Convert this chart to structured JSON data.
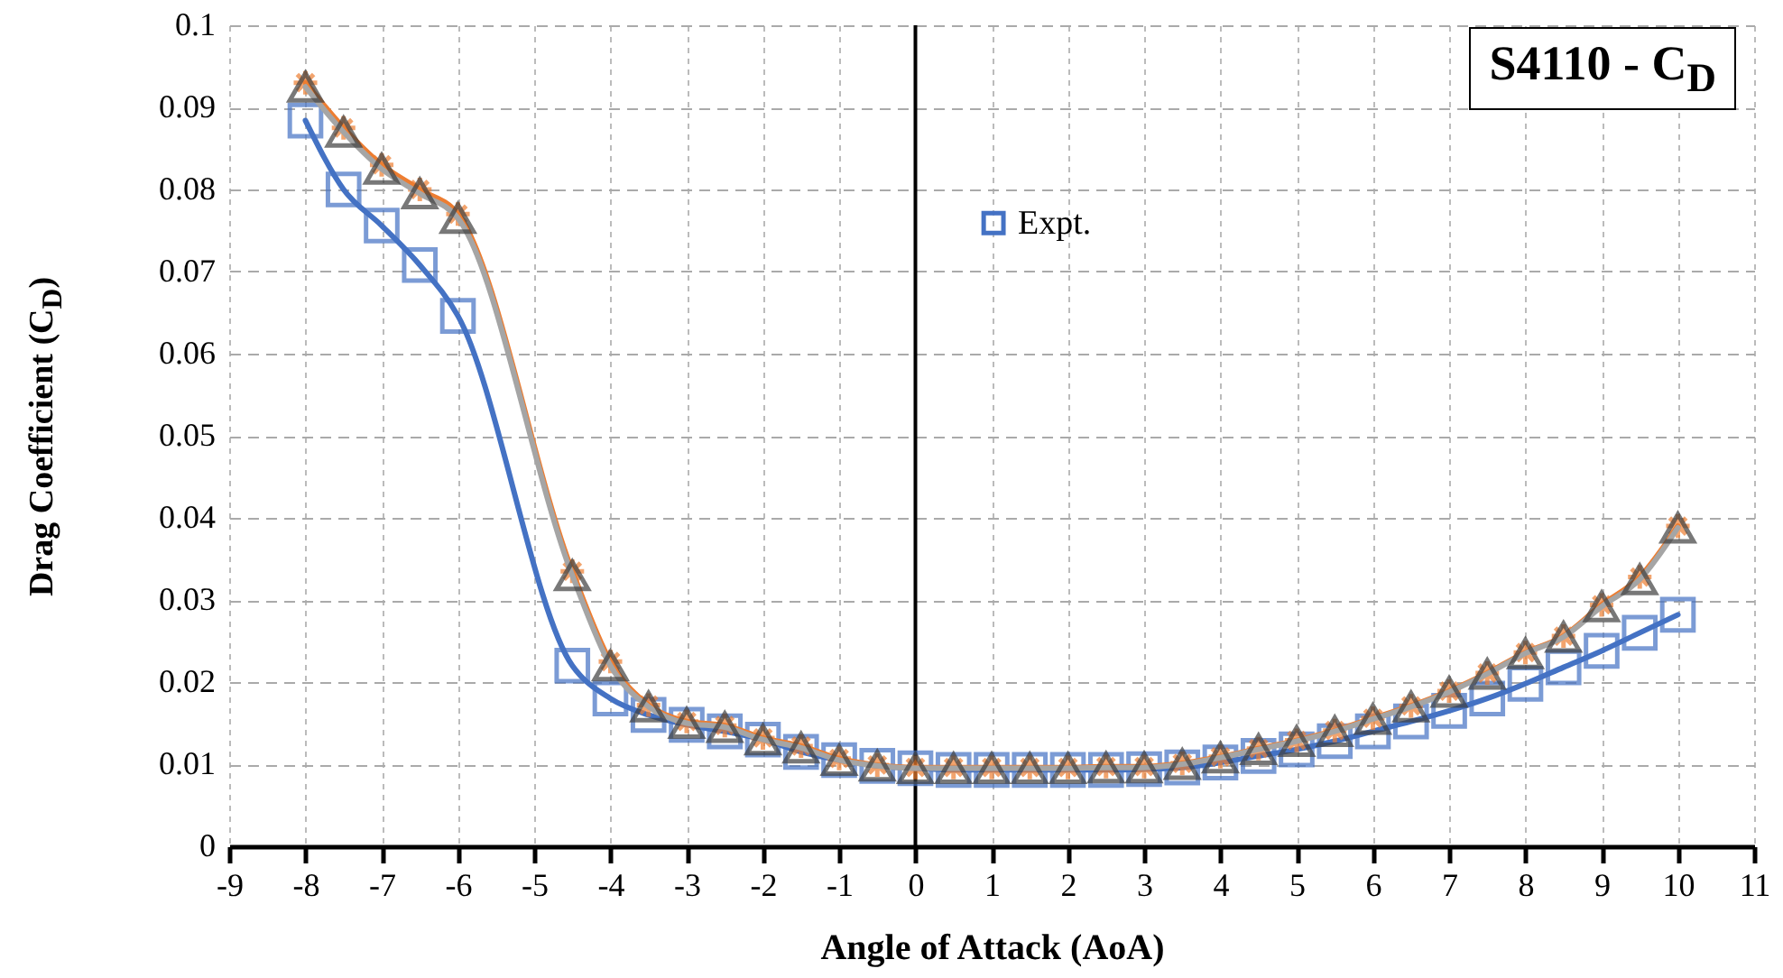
{
  "chart_data": {
    "type": "line",
    "title": "S4110 - C$_{D}$",
    "xlabel": "Angle of Attack (AoA)",
    "ylabel": "Drag Coefficient (C$_{D}$)",
    "x": [
      -8,
      -7.5,
      -7,
      -6.5,
      -6,
      -4.5,
      -4,
      -3.5,
      -3,
      -2.5,
      -2,
      -1.5,
      -1,
      -0.5,
      0,
      0.5,
      1,
      1.5,
      2,
      2.5,
      3,
      3.5,
      4,
      4.5,
      5,
      5.5,
      6,
      6.5,
      7,
      7.5,
      8,
      8.5,
      9,
      9.5,
      10
    ],
    "series": [
      {
        "name": "Expt.",
        "color": "#4472c4",
        "marker": "square",
        "values": [
          0.0884,
          0.08,
          0.0756,
          0.0708,
          0.0646,
          0.022,
          0.018,
          0.016,
          0.0148,
          0.014,
          0.013,
          0.0115,
          0.0105,
          0.0098,
          0.0095,
          0.0093,
          0.0093,
          0.0093,
          0.0093,
          0.0093,
          0.0094,
          0.0096,
          0.0102,
          0.011,
          0.0118,
          0.0128,
          0.014,
          0.0152,
          0.0165,
          0.018,
          0.0198,
          0.0218,
          0.0238,
          0.026,
          0.0282
        ]
      },
      {
        "color": "#ed7d31",
        "marker": "cross",
        "values": [
          0.093,
          0.0875,
          0.083,
          0.08,
          0.077,
          0.0335,
          0.0225,
          0.0172,
          0.0152,
          0.0147,
          0.0132,
          0.0122,
          0.0107,
          0.0099,
          0.0096,
          0.0096,
          0.0096,
          0.0096,
          0.0096,
          0.0097,
          0.0097,
          0.0101,
          0.0109,
          0.0119,
          0.0129,
          0.0141,
          0.0156,
          0.0171,
          0.0189,
          0.0211,
          0.0236,
          0.0256,
          0.0294,
          0.0328,
          0.039
        ]
      },
      {
        "color": "#a5a5a5",
        "marker": "triangle",
        "values": [
          0.0925,
          0.087,
          0.0825,
          0.0795,
          0.0765,
          0.033,
          0.022,
          0.017,
          0.015,
          0.0145,
          0.013,
          0.012,
          0.0105,
          0.0098,
          0.0095,
          0.0095,
          0.0095,
          0.0095,
          0.0095,
          0.0096,
          0.0096,
          0.01,
          0.0108,
          0.0118,
          0.0128,
          0.014,
          0.0155,
          0.017,
          0.0188,
          0.021,
          0.0235,
          0.0255,
          0.0292,
          0.0325,
          0.0388
        ]
      }
    ],
    "xlim": [
      -9,
      11
    ],
    "xticks": [
      -9,
      -8,
      -7,
      -6,
      -5,
      -4,
      -3,
      -2,
      -1,
      0,
      1,
      2,
      3,
      4,
      5,
      6,
      7,
      8,
      9,
      10,
      11
    ],
    "ylim": [
      0,
      0.1
    ],
    "yticks": [
      0,
      0.01,
      0.02,
      0.03,
      0.04,
      0.05,
      0.06,
      0.07,
      0.08,
      0.09,
      0.1
    ],
    "ref_lines": [
      {
        "axis": "x",
        "value": 0,
        "color": "#000000"
      }
    ],
    "grid": true,
    "legend": "top right",
    "line_style": "solid"
  }
}
